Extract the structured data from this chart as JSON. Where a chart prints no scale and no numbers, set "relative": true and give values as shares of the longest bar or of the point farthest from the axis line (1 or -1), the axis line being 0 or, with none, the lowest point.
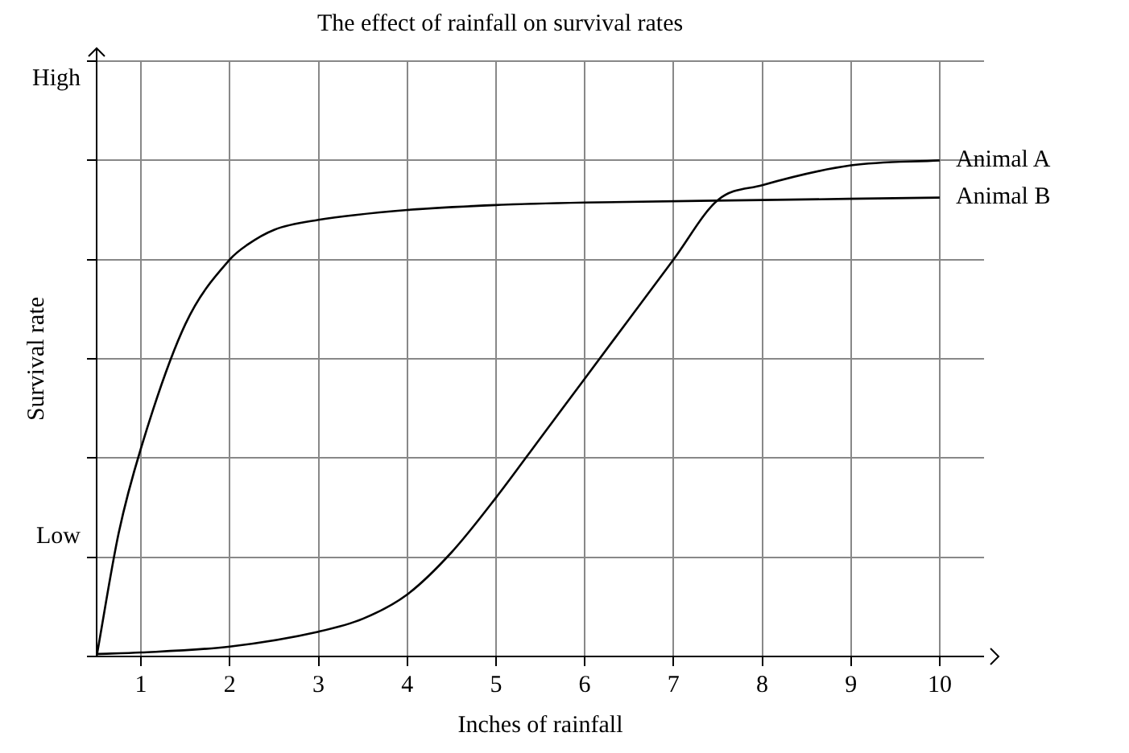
{
  "chart_data": {
    "type": "line",
    "title": "The effect of rainfall on survival rates",
    "xlabel": "Inches of rainfall",
    "ylabel": "Survival rate",
    "relative": true,
    "xlim": [
      0.5,
      10.5
    ],
    "xticks": [
      1,
      2,
      3,
      4,
      5,
      6,
      7,
      8,
      9,
      10
    ],
    "annotations": [
      "High",
      "Low"
    ],
    "grid": true,
    "legend": "right",
    "marker": "none",
    "line_style": "solid",
    "series": [
      {
        "name": "Animal A",
        "color": "#000000",
        "x": [
          0.5,
          1,
          2,
          3,
          3.5,
          4,
          4.5,
          5,
          5.5,
          6,
          6.5,
          7,
          7.5,
          8,
          9,
          10
        ],
        "values": [
          0.005,
          0.008,
          0.02,
          0.05,
          0.076,
          0.125,
          0.21,
          0.32,
          0.44,
          0.56,
          0.68,
          0.8,
          0.92,
          0.95,
          0.99,
          1
        ]
      },
      {
        "name": "Animal B",
        "color": "#000000",
        "x": [
          0.5,
          0.75,
          1,
          1.5,
          2,
          2.2,
          2.5,
          3,
          4,
          5,
          6,
          8,
          10
        ],
        "values": [
          0,
          0.25,
          0.42,
          0.67,
          0.8,
          0.83,
          0.86,
          0.88,
          0.9,
          0.91,
          0.915,
          0.92,
          0.925
        ]
      }
    ]
  }
}
